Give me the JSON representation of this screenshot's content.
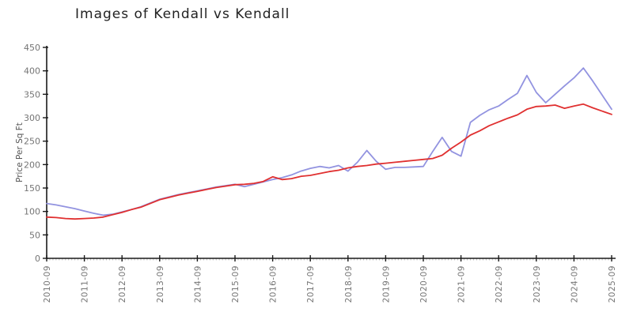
{
  "chart_data": {
    "type": "line",
    "title": "Images of Kendall vs Kendall",
    "xlabel": "",
    "ylabel": "Price Per Sq Ft",
    "ylim": [
      0,
      450
    ],
    "grid": false,
    "legend_position": "none",
    "y_ticks": [
      0,
      50,
      100,
      150,
      200,
      250,
      300,
      350,
      400,
      450
    ],
    "x_tick_labels": [
      "2010-09",
      "2011-09",
      "2012-09",
      "2013-09",
      "2014-09",
      "2015-09",
      "2016-09",
      "2017-09",
      "2018-09",
      "2019-09",
      "2020-09",
      "2021-09",
      "2022-09",
      "2023-09",
      "2024-09",
      "2025-09"
    ],
    "x_minor_tick_count": 180,
    "x": [
      "2010-09",
      "2010-12",
      "2011-03",
      "2011-06",
      "2011-09",
      "2011-12",
      "2012-03",
      "2012-06",
      "2012-09",
      "2012-12",
      "2013-03",
      "2013-06",
      "2013-09",
      "2013-12",
      "2014-03",
      "2014-06",
      "2014-09",
      "2014-12",
      "2015-03",
      "2015-06",
      "2015-09",
      "2015-12",
      "2016-03",
      "2016-06",
      "2016-09",
      "2016-12",
      "2017-03",
      "2017-06",
      "2017-09",
      "2017-12",
      "2018-03",
      "2018-06",
      "2018-09",
      "2018-12",
      "2019-03",
      "2019-06",
      "2019-09",
      "2019-12",
      "2020-03",
      "2020-06",
      "2020-09",
      "2020-12",
      "2021-03",
      "2021-06",
      "2021-09",
      "2021-12",
      "2022-03",
      "2022-06",
      "2022-09",
      "2022-12",
      "2023-03",
      "2023-06",
      "2023-09",
      "2023-12",
      "2024-03",
      "2024-06",
      "2024-09",
      "2024-12",
      "2025-03",
      "2025-06",
      "2025-09"
    ],
    "series": [
      {
        "name": "Kendall",
        "color": "#9293e0",
        "values": [
          117,
          114,
          110,
          106,
          101,
          96,
          92,
          94,
          99,
          104,
          110,
          118,
          126,
          131,
          136,
          140,
          144,
          148,
          152,
          155,
          158,
          153,
          158,
          163,
          168,
          172,
          178,
          186,
          192,
          196,
          193,
          198,
          186,
          205,
          230,
          207,
          190,
          194,
          194,
          195,
          196,
          228,
          258,
          228,
          218,
          290,
          305,
          317,
          325,
          339,
          352,
          390,
          354,
          332,
          350,
          368,
          385,
          406,
          378,
          348,
          318
        ]
      },
      {
        "name": "Kendall",
        "color": "#e03030",
        "values": [
          88,
          87,
          85,
          84,
          85,
          86,
          88,
          93,
          98,
          104,
          109,
          117,
          125,
          130,
          135,
          139,
          143,
          147,
          151,
          154,
          157,
          158,
          160,
          164,
          174,
          168,
          170,
          175,
          177,
          181,
          185,
          188,
          193,
          196,
          198,
          201,
          203,
          205,
          207,
          209,
          211,
          213,
          220,
          235,
          248,
          263,
          272,
          283,
          291,
          299,
          306,
          318,
          324,
          325,
          327,
          320,
          325,
          329,
          321,
          314,
          307
        ]
      }
    ],
    "axis_color": "#1a1a1a",
    "tick_label_color": "#757575",
    "minor_tick_color": "#b0b0b0"
  }
}
